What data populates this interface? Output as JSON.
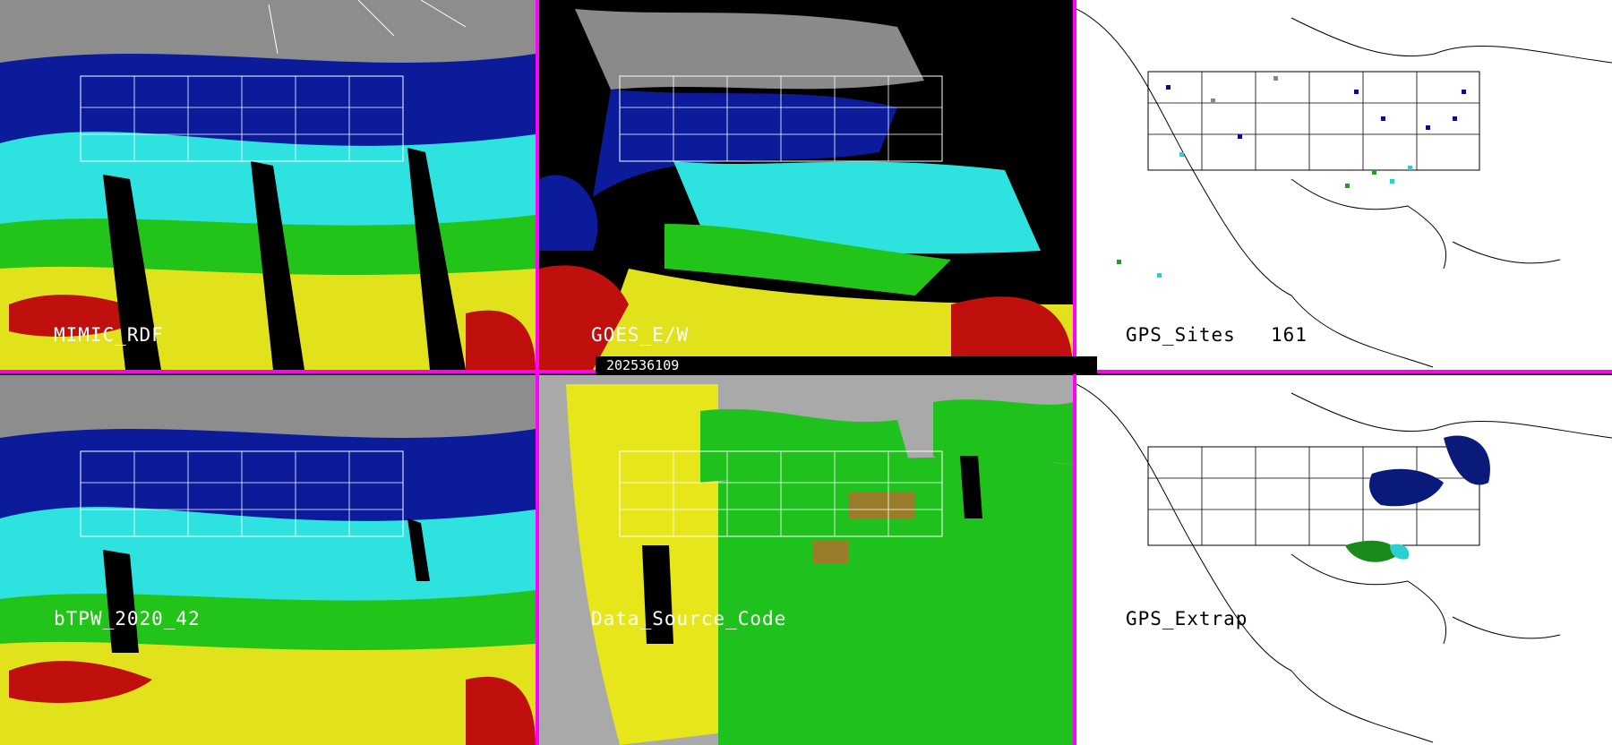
{
  "timestamp": "202536109",
  "panels": [
    {
      "id": "mimic",
      "label": "MIMIC_RDF"
    },
    {
      "id": "goes",
      "label": "GOES_E/W"
    },
    {
      "id": "gps_sites",
      "label": "GPS_Sites",
      "count": "161"
    },
    {
      "id": "btpw",
      "label": "bTPW_2020_42"
    },
    {
      "id": "source",
      "label": "Data_Source_Code"
    },
    {
      "id": "gps_extrap",
      "label": "GPS_Extrap"
    }
  ],
  "colors": {
    "separator": "#ff00ff",
    "tpw_low": "#0a0a9e",
    "tpw_mid_low": "#1a5fd6",
    "tpw_cyan": "#33e6e6",
    "tpw_green": "#22c21a",
    "tpw_yellow": "#e8e81a",
    "tpw_red": "#c8120f",
    "source_gray": "#a9a9a9",
    "source_green": "#1fc21c",
    "source_yellow": "#e6e61a",
    "source_olive": "#9a7d2a"
  }
}
